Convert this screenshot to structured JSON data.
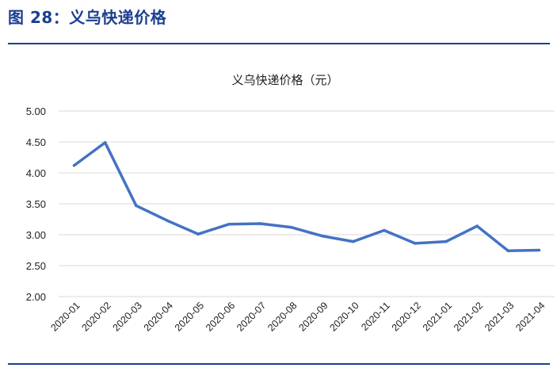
{
  "figure": {
    "label": "图 28：义乌快递价格"
  },
  "chart_data": {
    "type": "line",
    "title": "义乌快递价格（元）",
    "xlabel": "",
    "ylabel": "",
    "ylim": [
      2.0,
      5.0
    ],
    "yticks": [
      "2.00",
      "2.50",
      "3.00",
      "3.50",
      "4.00",
      "4.50",
      "5.00"
    ],
    "grid": true,
    "legend": "none",
    "categories": [
      "2020-01",
      "2020-02",
      "2020-03",
      "2020-04",
      "2020-05",
      "2020-06",
      "2020-07",
      "2020-08",
      "2020-09",
      "2020-10",
      "2020-11",
      "2020-12",
      "2021-01",
      "2021-02",
      "2021-03",
      "2021-04"
    ],
    "series": [
      {
        "values": [
          4.12,
          4.49,
          3.47,
          3.23,
          3.01,
          3.17,
          3.18,
          3.12,
          2.98,
          2.89,
          3.07,
          2.86,
          2.89,
          3.14,
          2.74,
          2.75
        ]
      }
    ],
    "colors": {
      "line": "#4472c4",
      "accent": "#1c3f91"
    }
  }
}
